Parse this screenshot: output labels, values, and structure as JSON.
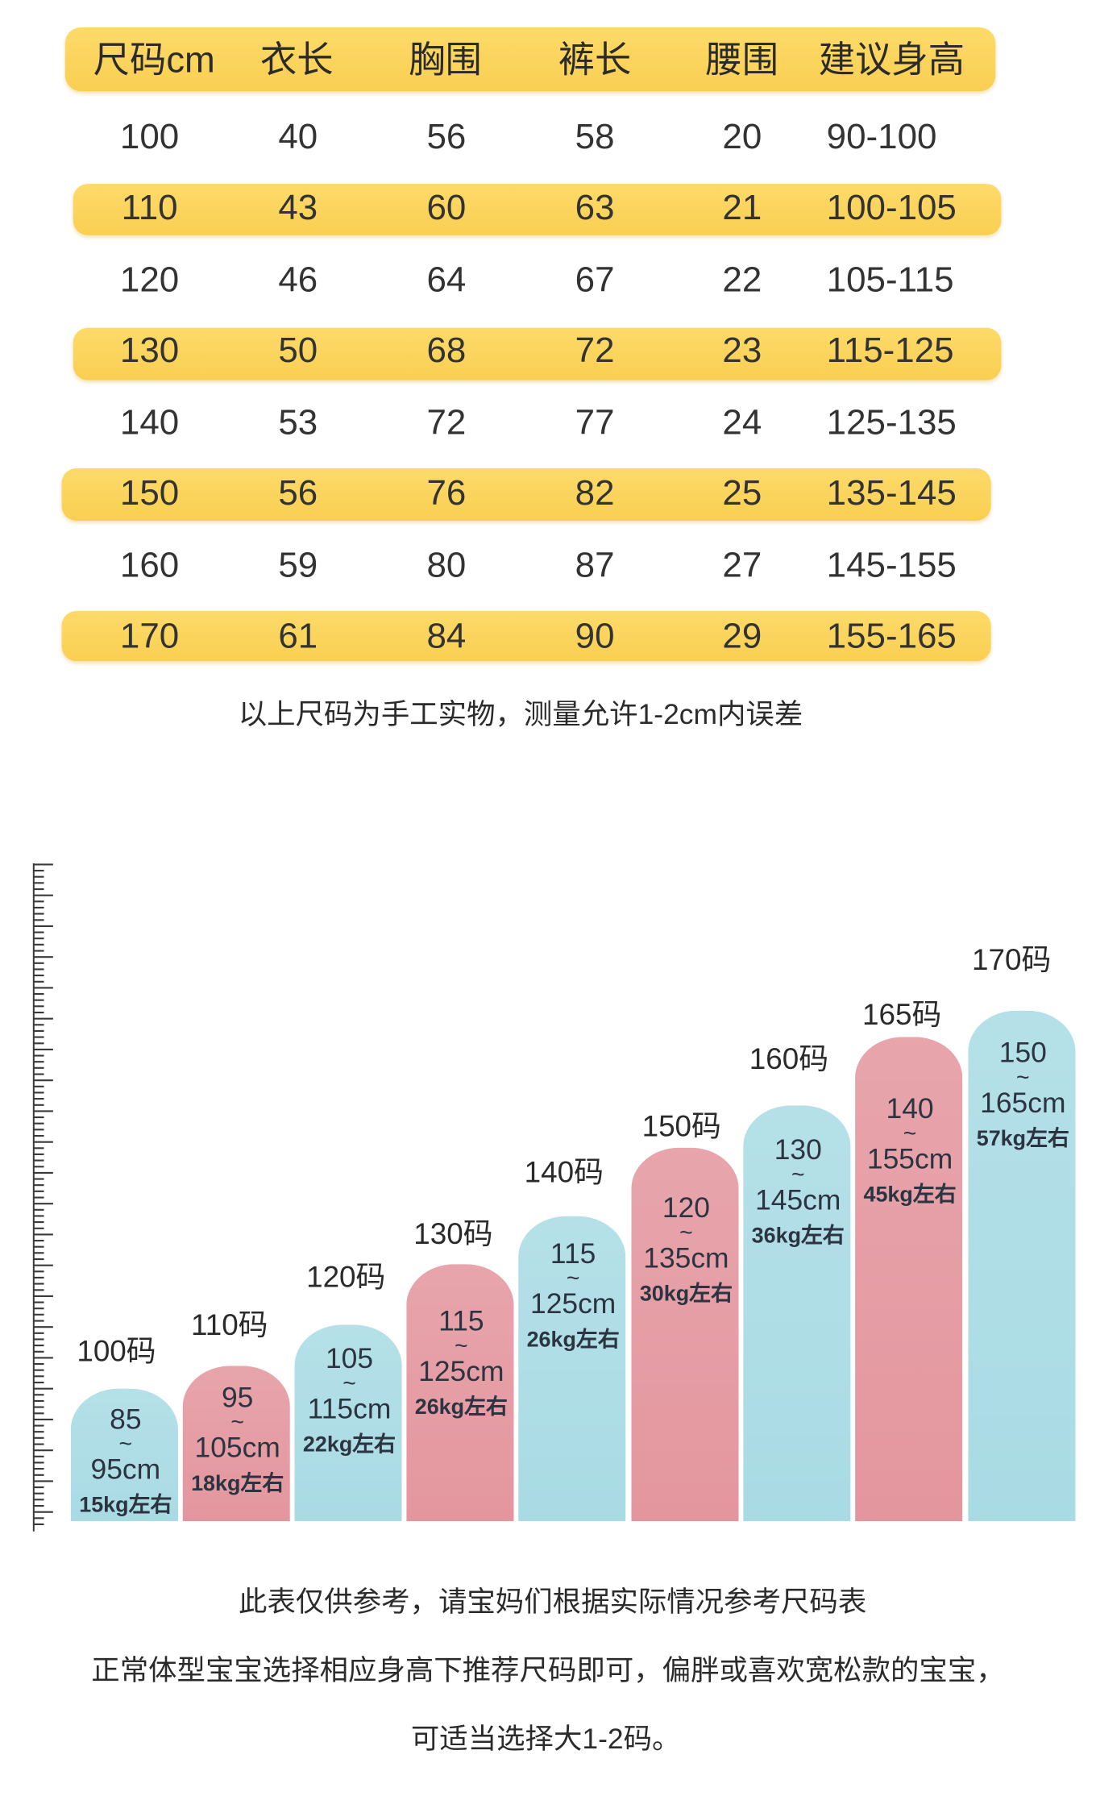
{
  "chart_data": [
    {
      "type": "table",
      "columns": [
        "尺码cm",
        "衣长",
        "胸围",
        "裤长",
        "腰围",
        "建议身高"
      ],
      "rows": [
        [
          "100",
          "40",
          "56",
          "58",
          "20",
          "90-100"
        ],
        [
          "110",
          "43",
          "60",
          "63",
          "21",
          "100-105"
        ],
        [
          "120",
          "46",
          "64",
          "67",
          "22",
          "105-115"
        ],
        [
          "130",
          "50",
          "68",
          "72",
          "23",
          "115-125"
        ],
        [
          "140",
          "53",
          "72",
          "77",
          "24",
          "125-135"
        ],
        [
          "150",
          "56",
          "76",
          "82",
          "25",
          "135-145"
        ],
        [
          "160",
          "59",
          "80",
          "87",
          "27",
          "145-155"
        ],
        [
          "170",
          "61",
          "84",
          "90",
          "29",
          "155-165"
        ]
      ]
    },
    {
      "type": "bar",
      "categories": [
        "100码",
        "110码",
        "120码",
        "130码",
        "140码",
        "150码",
        "160码",
        "165码",
        "170码"
      ],
      "range_low": [
        "85",
        "95",
        "105",
        "115",
        "115",
        "120",
        "130",
        "140",
        "150"
      ],
      "range_separator": "~",
      "range_high": [
        "95cm",
        "105cm",
        "115cm",
        "125cm",
        "125cm",
        "135cm",
        "145cm",
        "155cm",
        "165cm"
      ],
      "weight": [
        "15kg左右",
        "18kg左右",
        "22kg左右",
        "26kg左右",
        "26kg左右",
        "30kg左右",
        "36kg左右",
        "45kg左右",
        "57kg左右"
      ],
      "height_min_cm": [
        85,
        95,
        105,
        115,
        115,
        120,
        130,
        140,
        150
      ],
      "height_max_cm": [
        95,
        105,
        115,
        125,
        125,
        135,
        145,
        155,
        165
      ],
      "weight_kg": [
        15,
        18,
        22,
        26,
        26,
        30,
        36,
        45,
        57
      ],
      "bar_colors": [
        "#A9DBE4",
        "#E4969E",
        "#A9DBE4",
        "#E4969E",
        "#A9DBE4",
        "#E4969E",
        "#A9DBE4",
        "#E4969E",
        "#A9DBE4"
      ]
    }
  ],
  "notes": {
    "table_note": "以上尺码为手工实物，测量允许1-2cm内误差",
    "footer_line1": "此表仅供参考，请宝妈们根据实际情况参考尺码表",
    "footer_line2": "正常体型宝宝选择相应身高下推荐尺码即可，偏胖或喜欢宽松款的宝宝，",
    "footer_line3": "可适当选择大1-2码。"
  },
  "colors": {
    "highlight_yellow": "#FCD45C",
    "text": "#333333",
    "bar_text": "#2B3440",
    "ruler": "#3A3A3A"
  }
}
